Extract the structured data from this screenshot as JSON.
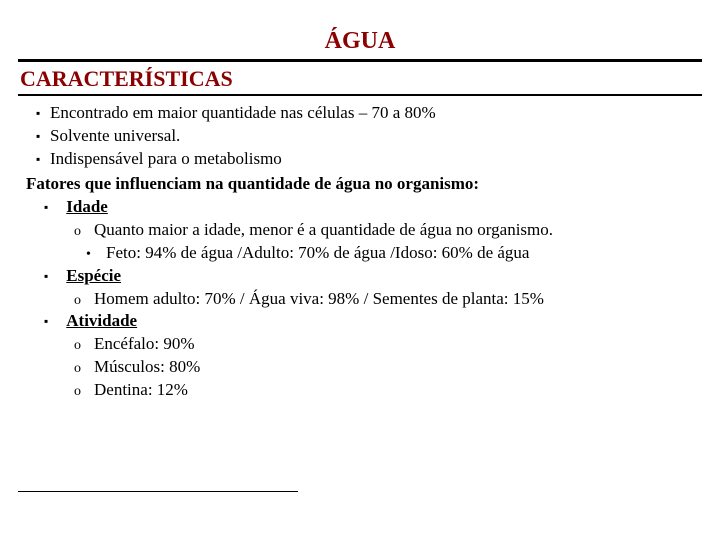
{
  "title": "ÁGUA",
  "subtitle": "CARACTERÍSTICAS",
  "bullets": {
    "b1": "Encontrado em maior quantidade nas células – 70 a 80%",
    "b2": "Solvente universal.",
    "b3": "Indispensável para o metabolismo"
  },
  "factors_heading": "Fatores que influenciam na quantidade de água no organismo:",
  "factors": {
    "f1": {
      "label": "Idade",
      "sub1": "Quanto maior a idade, menor é a quantidade de água no organismo.",
      "sub1a": "Feto: 94% de água /Adulto: 70% de água /Idoso: 60% de água"
    },
    "f2": {
      "label": "Espécie",
      "sub1": "Homem adulto: 70%  /  Água viva: 98% / Sementes de planta: 15%"
    },
    "f3": {
      "label": "Atividade",
      "sub1": "Encéfalo: 90%",
      "sub2": "Músculos: 80%",
      "sub3": "Dentina: 12%"
    }
  },
  "colors": {
    "title": "#8b0000",
    "text": "#000000",
    "background": "#ffffff"
  },
  "typography": {
    "family": "Times New Roman",
    "title_size_pt": 18,
    "subtitle_size_pt": 16,
    "body_size_pt": 13
  }
}
